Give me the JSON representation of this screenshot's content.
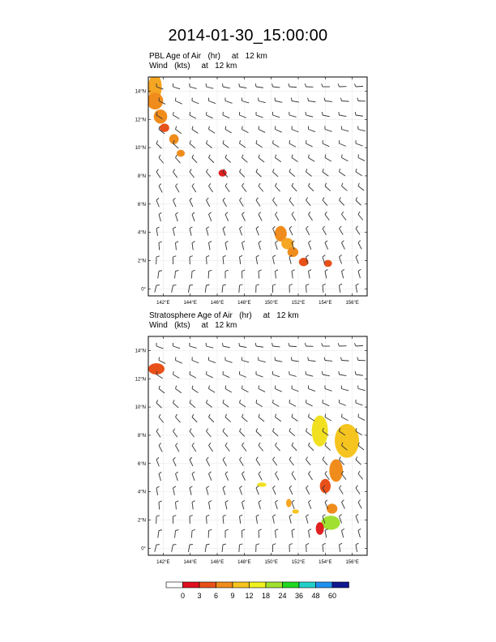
{
  "title": "2014-01-30_15:00:00",
  "panels": [
    {
      "id": "pbl",
      "title_line1": "PBL Age of Air   (hr)     at   12 km",
      "title_line2": "Wind   (kts)     at   12 km",
      "x_ticks": [
        "142°E",
        "144°E",
        "146°E",
        "148°E",
        "150°E",
        "152°E",
        "154°E",
        "156°E"
      ],
      "y_ticks": [
        "0°",
        "2°N",
        "4°N",
        "6°N",
        "8°N",
        "10°N",
        "12°N",
        "14°N"
      ],
      "fields": [
        {
          "lon": 141.4,
          "lat": 14.3,
          "rx": 0.5,
          "ry": 0.9,
          "color": "#f5a623"
        },
        {
          "lon": 141.4,
          "lat": 13.3,
          "rx": 0.6,
          "ry": 0.6,
          "color": "#f08c1c"
        },
        {
          "lon": 141.8,
          "lat": 12.2,
          "rx": 0.5,
          "ry": 0.5,
          "color": "#f08c1c"
        },
        {
          "lon": 142.1,
          "lat": 11.4,
          "rx": 0.35,
          "ry": 0.3,
          "color": "#e8501a"
        },
        {
          "lon": 142.8,
          "lat": 10.6,
          "rx": 0.35,
          "ry": 0.35,
          "color": "#f08c1c"
        },
        {
          "lon": 143.3,
          "lat": 9.6,
          "rx": 0.3,
          "ry": 0.25,
          "color": "#f08c1c"
        },
        {
          "lon": 146.4,
          "lat": 8.2,
          "rx": 0.3,
          "ry": 0.25,
          "color": "#e02020"
        },
        {
          "lon": 150.7,
          "lat": 3.9,
          "rx": 0.45,
          "ry": 0.55,
          "color": "#f08c1c"
        },
        {
          "lon": 151.2,
          "lat": 3.2,
          "rx": 0.45,
          "ry": 0.4,
          "color": "#f5a623"
        },
        {
          "lon": 151.6,
          "lat": 2.6,
          "rx": 0.4,
          "ry": 0.35,
          "color": "#f08c1c"
        },
        {
          "lon": 152.4,
          "lat": 1.9,
          "rx": 0.35,
          "ry": 0.3,
          "color": "#e8501a"
        },
        {
          "lon": 154.2,
          "lat": 1.8,
          "rx": 0.3,
          "ry": 0.25,
          "color": "#e8501a"
        }
      ]
    },
    {
      "id": "strat",
      "title_line1": "Stratosphere Age of Air   (hr)     at   12 km",
      "title_line2": "Wind   (kts)     at   12 km",
      "x_ticks": [
        "142°E",
        "144°E",
        "146°E",
        "148°E",
        "150°E",
        "152°E",
        "154°E",
        "156°E"
      ],
      "y_ticks": [
        "0°",
        "2°N",
        "4°N",
        "6°N",
        "8°N",
        "10°N",
        "12°N",
        "14°N"
      ],
      "fields": [
        {
          "lon": 141.5,
          "lat": 12.7,
          "rx": 0.6,
          "ry": 0.4,
          "color": "#e8501a"
        },
        {
          "lon": 153.6,
          "lat": 8.3,
          "rx": 0.6,
          "ry": 1.1,
          "color": "#f0e020"
        },
        {
          "lon": 155.6,
          "lat": 7.6,
          "rx": 0.9,
          "ry": 1.2,
          "color": "#f5c41e"
        },
        {
          "lon": 154.8,
          "lat": 5.5,
          "rx": 0.5,
          "ry": 0.8,
          "color": "#f08c1c"
        },
        {
          "lon": 154.0,
          "lat": 4.4,
          "rx": 0.4,
          "ry": 0.5,
          "color": "#e8501a"
        },
        {
          "lon": 154.5,
          "lat": 2.8,
          "rx": 0.4,
          "ry": 0.35,
          "color": "#f08c1c"
        },
        {
          "lon": 154.4,
          "lat": 1.8,
          "rx": 0.7,
          "ry": 0.5,
          "color": "#a0e030"
        },
        {
          "lon": 153.6,
          "lat": 1.4,
          "rx": 0.3,
          "ry": 0.45,
          "color": "#e02020"
        },
        {
          "lon": 149.3,
          "lat": 4.5,
          "rx": 0.35,
          "ry": 0.15,
          "color": "#f0e020"
        },
        {
          "lon": 151.3,
          "lat": 3.2,
          "rx": 0.2,
          "ry": 0.3,
          "color": "#f5a623"
        },
        {
          "lon": 151.8,
          "lat": 2.6,
          "rx": 0.25,
          "ry": 0.15,
          "color": "#f5c41e"
        }
      ]
    }
  ],
  "colorbar": {
    "labels": [
      "0",
      "3",
      "6",
      "9",
      "12",
      "18",
      "24",
      "36",
      "48",
      "60"
    ],
    "colors": [
      "#ffffff",
      "#e0101e",
      "#e8501a",
      "#f08c1c",
      "#f5c41e",
      "#f0f020",
      "#a0e030",
      "#20d820",
      "#20d0c8",
      "#2090f0",
      "#101890"
    ]
  },
  "map_extent": {
    "lon_min": 140.9,
    "lon_max": 157.1,
    "lat_min": -0.5,
    "lat_max": 15.0
  },
  "wind_barb_color": "#333333"
}
